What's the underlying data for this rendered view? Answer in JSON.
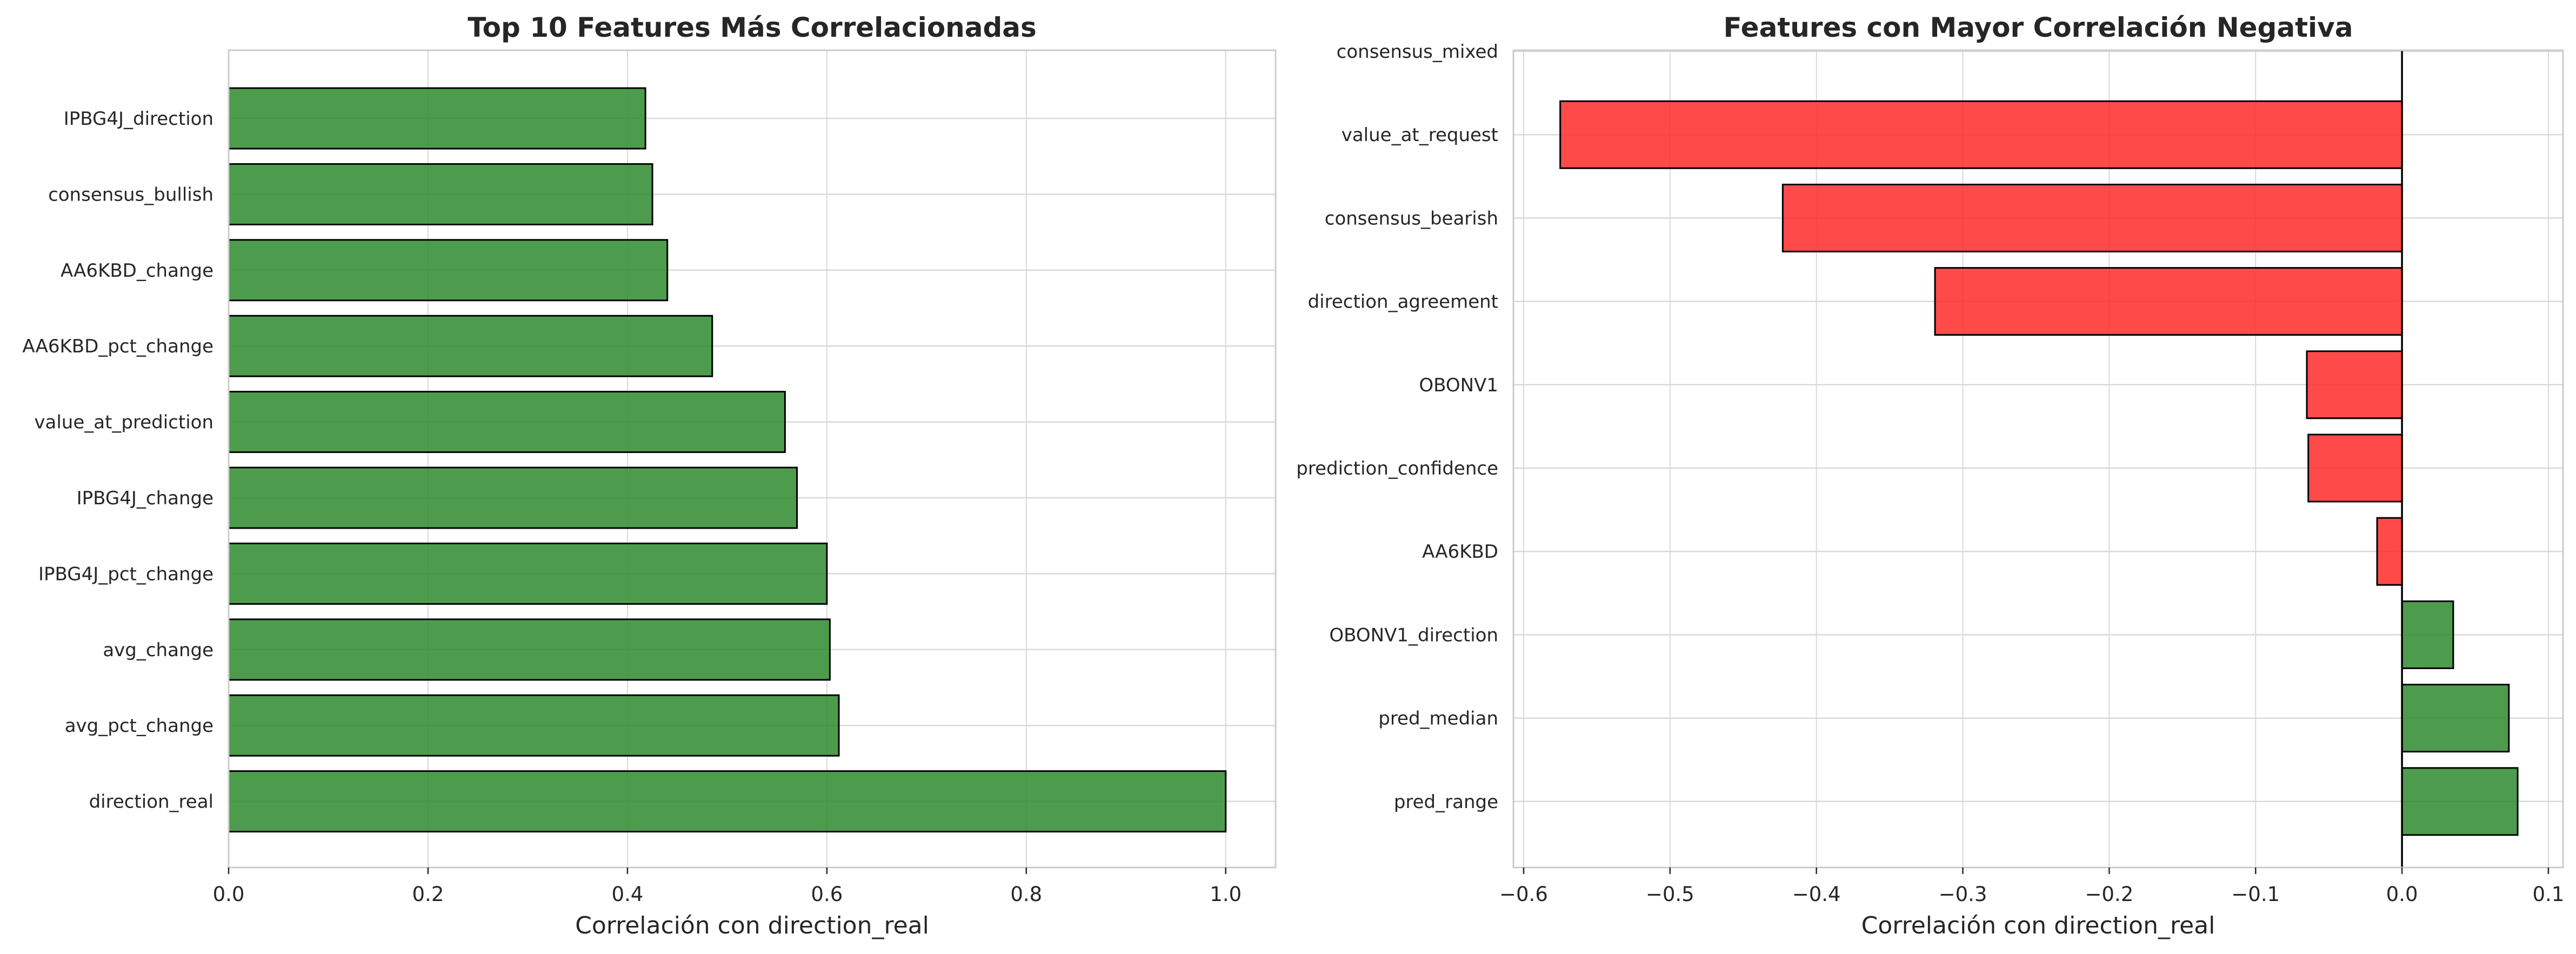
{
  "colors": {
    "positive": "#2e8b2e",
    "negative": "#ff2a2a",
    "grid": "#d9d9d9",
    "axes": "#cccccc",
    "zero_line": "#000000",
    "bar_edge": "#000000"
  },
  "chart_data": [
    {
      "type": "bar",
      "orientation": "horizontal",
      "title": "Top 10 Features Más Correlacionadas",
      "xlabel": "Correlación con direction_real",
      "ylabel": "",
      "xlim": [
        0,
        1.05
      ],
      "xticks": [
        0.0,
        0.2,
        0.4,
        0.6,
        0.8,
        1.0
      ],
      "xtick_labels": [
        "0.0",
        "0.2",
        "0.4",
        "0.6",
        "0.8",
        "1.0"
      ],
      "grid": true,
      "categories": [
        "IPBG4J_direction",
        "consensus_bullish",
        "AA6KBD_change",
        "AA6KBD_pct_change",
        "value_at_prediction",
        "IPBG4J_change",
        "IPBG4J_pct_change",
        "avg_change",
        "avg_pct_change",
        "direction_real"
      ],
      "values": [
        0.418,
        0.425,
        0.44,
        0.485,
        0.558,
        0.57,
        0.6,
        0.603,
        0.612,
        1.0
      ]
    },
    {
      "type": "bar",
      "orientation": "horizontal",
      "title": "Features con Mayor Correlación Negativa",
      "xlabel": "Correlación con direction_real",
      "ylabel": "",
      "xlim": [
        -0.607,
        0.11
      ],
      "xticks": [
        -0.6,
        -0.5,
        -0.4,
        -0.3,
        -0.2,
        -0.1,
        0.0,
        0.1
      ],
      "xtick_labels": [
        "−0.6",
        "−0.5",
        "−0.4",
        "−0.3",
        "−0.2",
        "−0.1",
        "0.0",
        "0.1"
      ],
      "grid": true,
      "categories": [
        "consensus_mixed",
        "value_at_request",
        "consensus_bearish",
        "direction_agreement",
        "OBONV1",
        "prediction_confidence",
        "AA6KBD",
        "OBONV1_direction",
        "pred_median",
        "pred_range"
      ],
      "values": [
        null,
        -0.575,
        -0.423,
        -0.319,
        -0.065,
        -0.064,
        -0.017,
        0.035,
        0.073,
        0.079
      ]
    }
  ]
}
